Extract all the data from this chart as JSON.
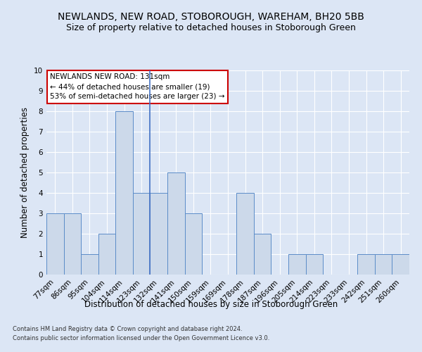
{
  "title": "NEWLANDS, NEW ROAD, STOBOROUGH, WAREHAM, BH20 5BB",
  "subtitle": "Size of property relative to detached houses in Stoborough Green",
  "xlabel": "Distribution of detached houses by size in Stoborough Green",
  "ylabel": "Number of detached properties",
  "categories": [
    "77sqm",
    "86sqm",
    "95sqm",
    "104sqm",
    "114sqm",
    "123sqm",
    "132sqm",
    "141sqm",
    "150sqm",
    "159sqm",
    "169sqm",
    "178sqm",
    "187sqm",
    "196sqm",
    "205sqm",
    "214sqm",
    "223sqm",
    "233sqm",
    "242sqm",
    "251sqm",
    "260sqm"
  ],
  "values": [
    3,
    3,
    1,
    2,
    8,
    4,
    4,
    5,
    3,
    0,
    0,
    4,
    2,
    0,
    1,
    1,
    0,
    0,
    1,
    1,
    1
  ],
  "bar_color": "#ccd9ea",
  "bar_edge_color": "#5b8cc8",
  "highlight_index": 5,
  "highlight_line_color": "#4472c4",
  "annotation_text": "NEWLANDS NEW ROAD: 131sqm\n← 44% of detached houses are smaller (19)\n53% of semi-detached houses are larger (23) →",
  "annotation_box_color": "white",
  "annotation_box_edge_color": "#cc0000",
  "footnote1": "Contains HM Land Registry data © Crown copyright and database right 2024.",
  "footnote2": "Contains public sector information licensed under the Open Government Licence v3.0.",
  "ylim": [
    0,
    10
  ],
  "yticks": [
    0,
    1,
    2,
    3,
    4,
    5,
    6,
    7,
    8,
    9,
    10
  ],
  "fig_bg": "#dce6f5",
  "plot_bg": "#dce6f5",
  "title_fontsize": 10,
  "subtitle_fontsize": 9,
  "tick_fontsize": 7.5,
  "ylabel_fontsize": 8.5,
  "xlabel_fontsize": 8.5,
  "annotation_fontsize": 7.5,
  "footnote_fontsize": 6
}
